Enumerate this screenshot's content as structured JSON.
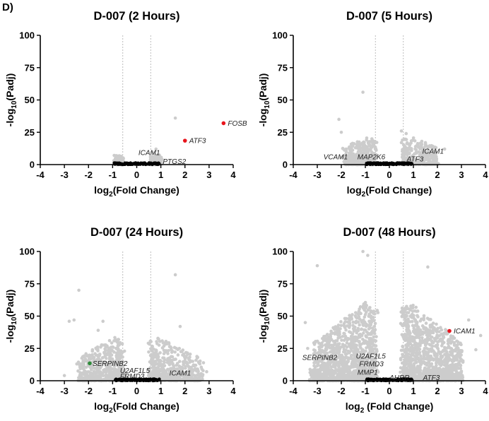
{
  "figure": {
    "panel_letter": "D)"
  },
  "colors": {
    "background_points": "#cccccc",
    "near_zero_points": "#000000",
    "up_highlight": "#e8141c",
    "down_highlight": "#2e8b3a",
    "threshold_line": "#bdbdbd"
  },
  "chart_data": [
    {
      "type": "scatter",
      "title": "D-007 (2 Hours)",
      "xlabel_main": "log",
      "xlabel_sub": "2",
      "xlabel_rest": "(Fold Change)",
      "ylabel_main": "-log",
      "ylabel_sub": "10",
      "ylabel_rest": "(Padj)",
      "xlim": [
        -4,
        4
      ],
      "ylim": [
        0,
        100
      ],
      "xticks": [
        "-4",
        "-3",
        "-2",
        "-1",
        "0",
        "1",
        "2",
        "3",
        "4"
      ],
      "yticks": [
        "0",
        "25",
        "50",
        "75",
        "100"
      ],
      "thresholds_x": [
        -0.58,
        0.58
      ],
      "cloud": {
        "left_min": -0.9,
        "right_max": 1.0,
        "spread": 0.22,
        "ymax": 8,
        "count": 280,
        "seed": 11
      },
      "outliers": [
        [
          0.65,
          6
        ],
        [
          0.7,
          9
        ],
        [
          0.9,
          7
        ],
        [
          1.05,
          4
        ],
        [
          -0.95,
          3
        ],
        [
          1.6,
          36
        ],
        [
          0.8,
          12
        ]
      ],
      "highlights": [
        {
          "gene": "FOSB",
          "x": 3.6,
          "y": 32,
          "color": "red",
          "label_dx": 6,
          "label_dy": 0
        },
        {
          "gene": "ATF3",
          "x": 2.0,
          "y": 18.5,
          "color": "red",
          "label_dx": 6,
          "label_dy": 0
        },
        {
          "gene": "ICAM1",
          "x": 0.95,
          "y": 6.5,
          "color": "none",
          "label_dx": -30,
          "label_dy": -5
        },
        {
          "gene": "PTGS2",
          "x": 1.55,
          "y": 2.5,
          "color": "none",
          "label_dx": -16,
          "label_dy": 0
        }
      ]
    },
    {
      "type": "scatter",
      "title": "D-007 (5 Hours)",
      "xlabel_main": "log",
      "xlabel_sub": "2",
      "xlabel_rest": "(Fold Change)",
      "ylabel_main": "-log",
      "ylabel_sub": "10",
      "ylabel_rest": "(Padj)",
      "xlim": [
        -4,
        4
      ],
      "ylim": [
        0,
        100
      ],
      "xticks": [
        "-4",
        "-3",
        "-2",
        "-1",
        "0",
        "1",
        "2",
        "3",
        "4"
      ],
      "yticks": [
        "0",
        "25",
        "50",
        "75",
        "100"
      ],
      "thresholds_x": [
        -0.58,
        0.58
      ],
      "cloud": {
        "left_min": -1.9,
        "right_max": 2.0,
        "spread": 0.4,
        "ymax": 22,
        "count": 700,
        "seed": 23
      },
      "outliers": [
        [
          -1.1,
          56
        ],
        [
          -2.1,
          35
        ],
        [
          -2.0,
          25
        ],
        [
          0.5,
          26
        ],
        [
          0.7,
          24
        ],
        [
          1.2,
          14
        ],
        [
          1.5,
          17
        ],
        [
          2.3,
          12
        ],
        [
          0.5,
          17
        ],
        [
          -1.3,
          15
        ]
      ],
      "highlights": [
        {
          "gene": "VCAM1",
          "x": -1.45,
          "y": 6,
          "color": "none",
          "label_dx": -44,
          "label_dy": 0
        },
        {
          "gene": "MAP2K6",
          "x": -0.45,
          "y": 6,
          "color": "none",
          "label_dx": -30,
          "label_dy": 0
        },
        {
          "gene": "ICAM1",
          "x": 1.25,
          "y": 10.5,
          "color": "none",
          "label_dx": 4,
          "label_dy": 0
        },
        {
          "gene": "ATF3",
          "x": 0.9,
          "y": 4.5,
          "color": "none",
          "label_dx": -6,
          "label_dy": 0
        }
      ]
    },
    {
      "type": "scatter",
      "title": "D-007 (24 Hours)",
      "xlabel_main": "log",
      "xlabel_sub": "2",
      "xlabel_rest": "(Fold Change)",
      "ylabel_main": "-log",
      "ylabel_sub": "10",
      "ylabel_rest": "(Padj)",
      "xlim": [
        -4,
        4
      ],
      "ylim": [
        0,
        100
      ],
      "xticks": [
        "-4",
        "-3",
        "-2",
        "-1",
        "0",
        "1",
        "2",
        "3",
        "4"
      ],
      "yticks": [
        "0",
        "25",
        "50",
        "75",
        "100"
      ],
      "thresholds_x": [
        -0.58,
        0.58
      ],
      "cloud": {
        "left_min": -2.4,
        "right_max": 2.7,
        "spread": 0.6,
        "ymax": 34,
        "count": 1200,
        "seed": 37
      },
      "outliers": [
        [
          -2.4,
          70
        ],
        [
          -2.6,
          47
        ],
        [
          -2.8,
          46
        ],
        [
          1.6,
          82
        ],
        [
          2.7,
          9
        ],
        [
          2.9,
          7
        ],
        [
          -3.0,
          4
        ],
        [
          1.8,
          42
        ],
        [
          -1.4,
          46
        ],
        [
          -1.6,
          39
        ]
      ],
      "highlights": [
        {
          "gene": "SERPINB2",
          "x": -1.95,
          "y": 13.5,
          "color": "green",
          "label_dx": 4,
          "label_dy": 0
        },
        {
          "gene": "U2AF1L5",
          "x": -0.75,
          "y": 8,
          "color": "none",
          "label_dx": 2,
          "label_dy": 0
        },
        {
          "gene": "FRMD3",
          "x": -0.75,
          "y": 3.5,
          "color": "none",
          "label_dx": 2,
          "label_dy": 0
        },
        {
          "gene": "ICAM1",
          "x": 1.35,
          "y": 6,
          "color": "none",
          "label_dx": 0,
          "label_dy": 0
        }
      ]
    },
    {
      "type": "scatter",
      "title": "D-007 (48 Hours)",
      "xlabel_main": "log",
      "xlabel_sub": "2",
      "xlabel_rest": " (Fold Change)",
      "ylabel_main": "-log",
      "ylabel_sub": "10",
      "ylabel_rest": "(Padj)",
      "xlim": [
        -4,
        4
      ],
      "ylim": [
        0,
        100
      ],
      "xticks": [
        "-4",
        "-3",
        "-2",
        "-1",
        "0",
        "1",
        "2",
        "3",
        "4"
      ],
      "yticks": [
        "0",
        "25",
        "50",
        "75",
        "100"
      ],
      "thresholds_x": [
        -0.58,
        0.58
      ],
      "cloud": {
        "left_min": -3.2,
        "right_max": 3.0,
        "spread": 0.7,
        "ymax": 62,
        "count": 2600,
        "seed": 53
      },
      "outliers": [
        [
          -1.1,
          100
        ],
        [
          -0.9,
          97
        ],
        [
          -3.0,
          89
        ],
        [
          1.6,
          88
        ],
        [
          3.3,
          47
        ],
        [
          3.8,
          35
        ],
        [
          -3.4,
          25
        ],
        [
          -3.5,
          45
        ],
        [
          3.6,
          24
        ]
      ],
      "highlights": [
        {
          "gene": "ICAM1",
          "x": 2.5,
          "y": 38.5,
          "color": "red",
          "label_dx": 6,
          "label_dy": 0
        },
        {
          "gene": "SERPINB2",
          "x": -1.8,
          "y": 18,
          "color": "none",
          "label_dx": -62,
          "label_dy": 0
        },
        {
          "gene": "U2AF1L5",
          "x": -1.1,
          "y": 19,
          "color": "none",
          "label_dx": -10,
          "label_dy": 0
        },
        {
          "gene": "FRMD3",
          "x": -0.9,
          "y": 13,
          "color": "none",
          "label_dx": -12,
          "label_dy": 0
        },
        {
          "gene": "MMP1",
          "x": -1.3,
          "y": 6.5,
          "color": "none",
          "label_dx": -1,
          "label_dy": 0
        },
        {
          "gene": "AHRR",
          "x": 0.65,
          "y": 2.5,
          "color": "none",
          "label_dx": -22,
          "label_dy": 0
        },
        {
          "gene": "ATF3",
          "x": 1.4,
          "y": 2.5,
          "color": "none",
          "label_dx": 0,
          "label_dy": 0
        }
      ]
    }
  ]
}
